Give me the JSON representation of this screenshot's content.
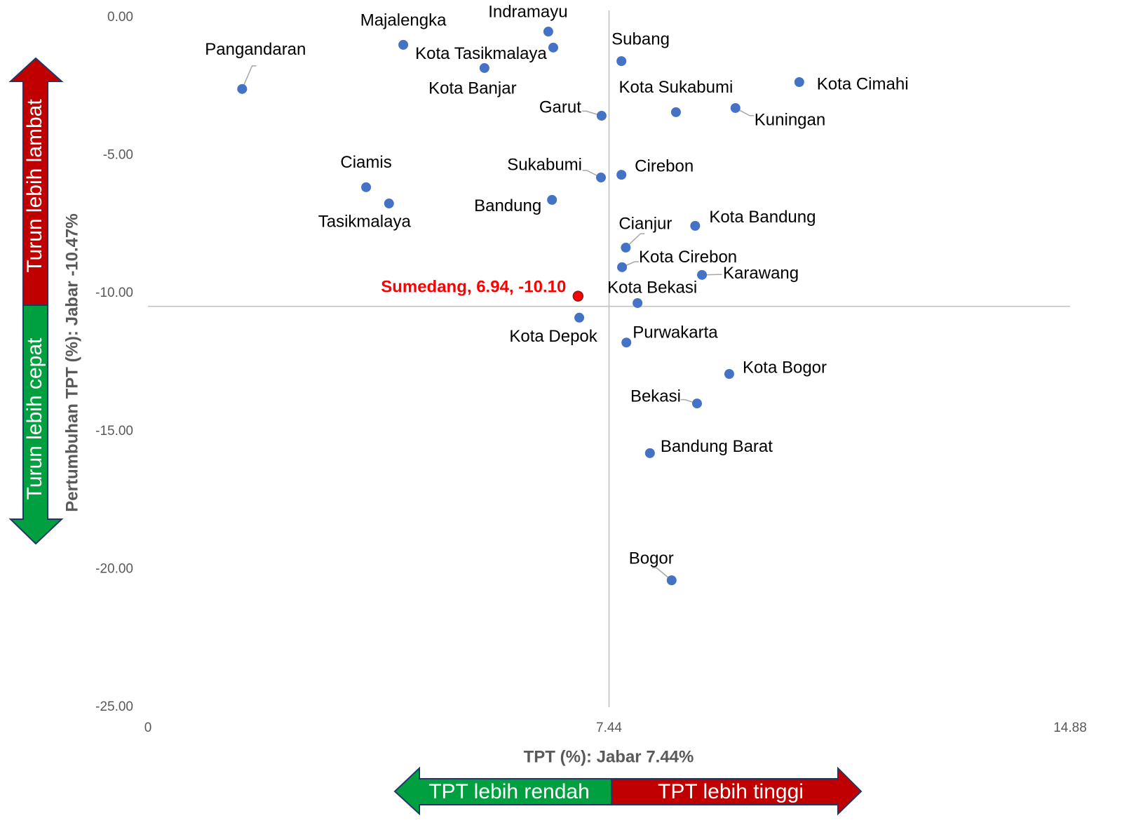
{
  "chart_data": {
    "type": "scatter",
    "x_label": "TPT (%): Jabar 7.44%",
    "y_label": "Pertumbuhan TPT (%): Jabar -10.47%",
    "xlim": [
      0,
      14.88
    ],
    "ylim": [
      -25,
      0
    ],
    "xticks": [
      0,
      7.44,
      14.88
    ],
    "yticks": [
      {
        "value": 0,
        "label": "0.00"
      },
      {
        "value": -5,
        "label": "-5.00"
      },
      {
        "value": -10,
        "label": "-10.00"
      },
      {
        "value": -15,
        "label": "-15.00"
      },
      {
        "value": -20,
        "label": "-20.00"
      },
      {
        "value": -25,
        "label": "-25.00"
      }
    ],
    "ref_x": 7.44,
    "ref_y": -10.47,
    "color": "#4472c4",
    "highlight_color": "#ff0000",
    "arrows": {
      "up": "Turun lebih lambat",
      "down": "Turun lebih cepat",
      "left": "TPT lebih rendah",
      "right": "TPT lebih tinggi"
    },
    "points": [
      {
        "label": "Indramayu",
        "x": 6.46,
        "y": -0.51
      },
      {
        "label": "Majalengka",
        "x": 4.12,
        "y": -0.99
      },
      {
        "label": "Kota Tasikmalaya",
        "x": 6.54,
        "y": -1.09
      },
      {
        "label": "Subang",
        "x": 7.64,
        "y": -1.58
      },
      {
        "label": "Kota Banjar",
        "x": 5.43,
        "y": -1.83
      },
      {
        "label": "Pangandaran",
        "x": 1.52,
        "y": -2.59
      },
      {
        "label": "Kota Cimahi",
        "x": 10.51,
        "y": -2.34
      },
      {
        "label": "Kota Sukabumi",
        "x": 8.52,
        "y": -3.43
      },
      {
        "label": "Kuningan",
        "x": 9.48,
        "y": -3.28
      },
      {
        "label": "Garut",
        "x": 7.32,
        "y": -3.56
      },
      {
        "label": "Ciamis",
        "x": 3.52,
        "y": -6.15
      },
      {
        "label": "Tasikmalaya",
        "x": 3.89,
        "y": -6.74
      },
      {
        "label": "Sukabumi",
        "x": 7.31,
        "y": -5.8
      },
      {
        "label": "Cirebon",
        "x": 7.64,
        "y": -5.7
      },
      {
        "label": "Bandung",
        "x": 6.52,
        "y": -6.61
      },
      {
        "label": "Kota Bandung",
        "x": 8.83,
        "y": -7.55
      },
      {
        "label": "Cianjur",
        "x": 7.71,
        "y": -8.34
      },
      {
        "label": "Kota Cirebon",
        "x": 7.65,
        "y": -9.05
      },
      {
        "label": "Karawang",
        "x": 8.94,
        "y": -9.33
      },
      {
        "label": "Sumedang, 6.94, -10.10",
        "x": 6.94,
        "y": -10.1,
        "highlight": true
      },
      {
        "label": "Kota Bekasi",
        "x": 7.9,
        "y": -10.35
      },
      {
        "label": "Kota Depok",
        "x": 6.96,
        "y": -10.88
      },
      {
        "label": "Purwakarta",
        "x": 7.72,
        "y": -11.78
      },
      {
        "label": "Kota Bogor",
        "x": 9.38,
        "y": -12.92
      },
      {
        "label": "Bekasi",
        "x": 8.86,
        "y": -13.99
      },
      {
        "label": "Bandung Barat",
        "x": 8.1,
        "y": -15.79
      },
      {
        "label": "Bogor",
        "x": 8.45,
        "y": -20.4
      }
    ]
  }
}
